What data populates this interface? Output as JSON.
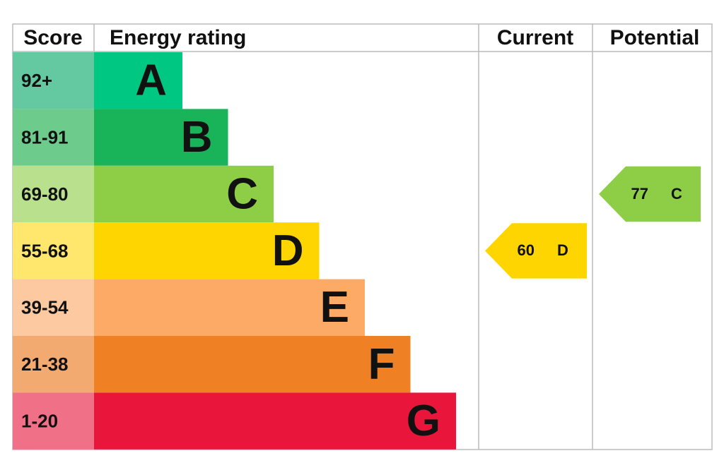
{
  "headers": {
    "score": "Score",
    "rating": "Energy rating",
    "current": "Current",
    "potential": "Potential"
  },
  "bands": [
    {
      "score": "92+",
      "letter": "A",
      "color": "#00c781",
      "score_color": "#64c8a0"
    },
    {
      "score": "81-91",
      "letter": "B",
      "color": "#19b459",
      "score_color": "#6dcb8c"
    },
    {
      "score": "69-80",
      "letter": "C",
      "color": "#8dce46",
      "score_color": "#b9e08c"
    },
    {
      "score": "55-68",
      "letter": "D",
      "color": "#ffd500",
      "score_color": "#ffe66d"
    },
    {
      "score": "39-54",
      "letter": "E",
      "color": "#fcaa65",
      "score_color": "#fdc9a0"
    },
    {
      "score": "21-38",
      "letter": "F",
      "color": "#ef8023",
      "score_color": "#f3aa70"
    },
    {
      "score": "1-20",
      "letter": "G",
      "color": "#e9153b",
      "score_color": "#f07087"
    }
  ],
  "current": {
    "value": 60,
    "letter": "D"
  },
  "potential": {
    "value": 77,
    "letter": "C"
  }
}
